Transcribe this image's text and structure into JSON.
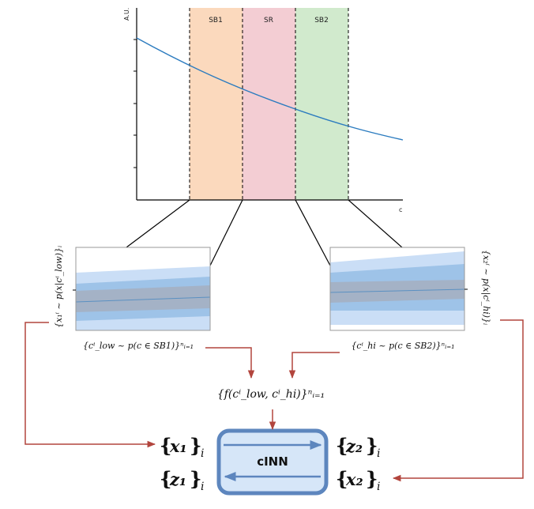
{
  "top_plot": {
    "y_label": "A.U.",
    "x_label": "c",
    "regions": [
      {
        "label": "SB1",
        "color": "#fbd9bd"
      },
      {
        "label": "SR",
        "color": "#f3cdd3"
      },
      {
        "label": "SB2",
        "color": "#d1eacd"
      }
    ],
    "curve_color": "#2b7bbf"
  },
  "left_inset": {
    "ylabel_math": "{x₁ⁱ ~ p(x|cⁱ_low)}ᵢ",
    "xlabel_math": "{cⁱ_low ~ p(c ∈ SB1)}ⁿᵢ₌₁"
  },
  "right_inset": {
    "ylabel_math": "{x₂ⁱ ~ p(x|cⁱ_hi)}ᵢ",
    "xlabel_math": "{cⁱ_hi ~ p(c ∈ SB2)}ⁿᵢ₌₁"
  },
  "condition": "{f(cⁱ_low, cⁱ_hi)}ⁿᵢ₌₁",
  "cinn": {
    "label": "cINN",
    "in_left": "x₁",
    "out_right": "z₂",
    "in_right": "x₂",
    "out_left": "z₁",
    "box_fill": "#d6e6f8",
    "box_stroke": "#5d86be",
    "arrow_color": "#b2453d"
  }
}
